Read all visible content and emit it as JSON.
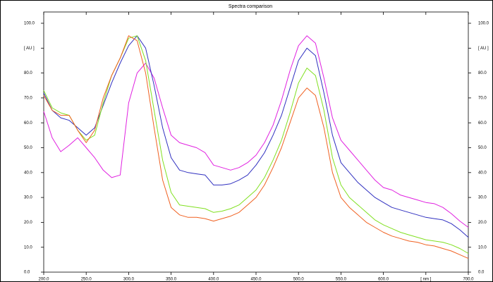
{
  "chart_data": {
    "type": "line",
    "title": "Spectra comparison",
    "x": [
      200,
      210,
      220,
      230,
      240,
      250,
      260,
      270,
      280,
      290,
      300,
      310,
      320,
      330,
      340,
      350,
      360,
      370,
      380,
      390,
      400,
      410,
      420,
      430,
      440,
      450,
      460,
      470,
      480,
      490,
      500,
      510,
      520,
      530,
      540,
      550,
      560,
      570,
      580,
      590,
      600,
      610,
      620,
      630,
      640,
      650,
      660,
      670,
      680,
      690,
      700
    ],
    "series": [
      {
        "color": "#e020e0",
        "values": [
          64.6,
          54,
          48.4,
          51,
          54,
          50,
          46,
          41,
          38,
          39,
          68,
          80,
          84,
          78,
          66,
          55,
          52,
          51,
          50,
          48,
          43,
          42,
          41,
          42,
          44,
          47,
          52,
          59,
          69,
          81,
          91,
          95,
          92,
          78,
          62,
          53,
          49,
          45,
          41,
          37,
          34,
          33,
          31,
          30,
          29,
          28,
          27.5,
          26,
          23.5,
          20.5,
          18
        ]
      },
      {
        "color": "#3030c0",
        "values": [
          72,
          65,
          62,
          61,
          58,
          55,
          58,
          67,
          76,
          84,
          91,
          95,
          90,
          75,
          58,
          46,
          41,
          40,
          39.5,
          39,
          35,
          35,
          35.5,
          37,
          39,
          43,
          48,
          55,
          63,
          74,
          85,
          90,
          87,
          72,
          55,
          44,
          40,
          36,
          33,
          30,
          28,
          26,
          25,
          24,
          23,
          22,
          21.5,
          21,
          19.5,
          17,
          14
        ]
      },
      {
        "color": "#80e020",
        "values": [
          73,
          66,
          64,
          63,
          57,
          53,
          55,
          68,
          79,
          86,
          94,
          95,
          85,
          65,
          45,
          32,
          27,
          26.5,
          26,
          25.5,
          24,
          24.5,
          25.5,
          27,
          30,
          33,
          38,
          45,
          53,
          64,
          76,
          82,
          79,
          65,
          46,
          35,
          30,
          27,
          24,
          21,
          19,
          17.5,
          16,
          15,
          14,
          13,
          12.5,
          12,
          11,
          9.5,
          7.5
        ]
      },
      {
        "color": "#f06020",
        "values": [
          71,
          65,
          63,
          63,
          57,
          52,
          57,
          70,
          79,
          86,
          95,
          93,
          80,
          58,
          37,
          26,
          23,
          22,
          22,
          21.5,
          20.5,
          21.5,
          22.5,
          24,
          27,
          30,
          35,
          42,
          50,
          60,
          70,
          74,
          71,
          58,
          40,
          30,
          26,
          23,
          20,
          18,
          16,
          14.5,
          13.5,
          12.5,
          12,
          11,
          10.5,
          9.5,
          8.5,
          7,
          5.5
        ]
      }
    ],
    "xlim": [
      200,
      700
    ],
    "xticks": [
      {
        "value": 200,
        "label": "200.0"
      },
      {
        "value": 250,
        "label": "250.0"
      },
      {
        "value": 300,
        "label": "300.0"
      },
      {
        "value": 350,
        "label": "350.0"
      },
      {
        "value": 400,
        "label": "400.0"
      },
      {
        "value": 450,
        "label": "450.0"
      },
      {
        "value": 500,
        "label": "500.0"
      },
      {
        "value": 550,
        "label": "550.0"
      },
      {
        "value": 600,
        "label": "600.0"
      },
      {
        "value": 650,
        "label": "[ nm ]"
      },
      {
        "value": 700,
        "label": "700.0"
      }
    ],
    "ylim": [
      0,
      100
    ],
    "yticks": [
      {
        "value": 0,
        "label": "0.0"
      },
      {
        "value": 10,
        "label": "10.0"
      },
      {
        "value": 20,
        "label": "20.0"
      },
      {
        "value": 30,
        "label": "30.0"
      },
      {
        "value": 40,
        "label": "40.0"
      },
      {
        "value": 50,
        "label": "50.0"
      },
      {
        "value": 60,
        "label": "60.0"
      },
      {
        "value": 70,
        "label": "70.0"
      },
      {
        "value": 80,
        "label": "80.0"
      },
      {
        "value": 90,
        "label": "[ AU ]"
      },
      {
        "value": 100,
        "label": "100.0"
      }
    ]
  }
}
